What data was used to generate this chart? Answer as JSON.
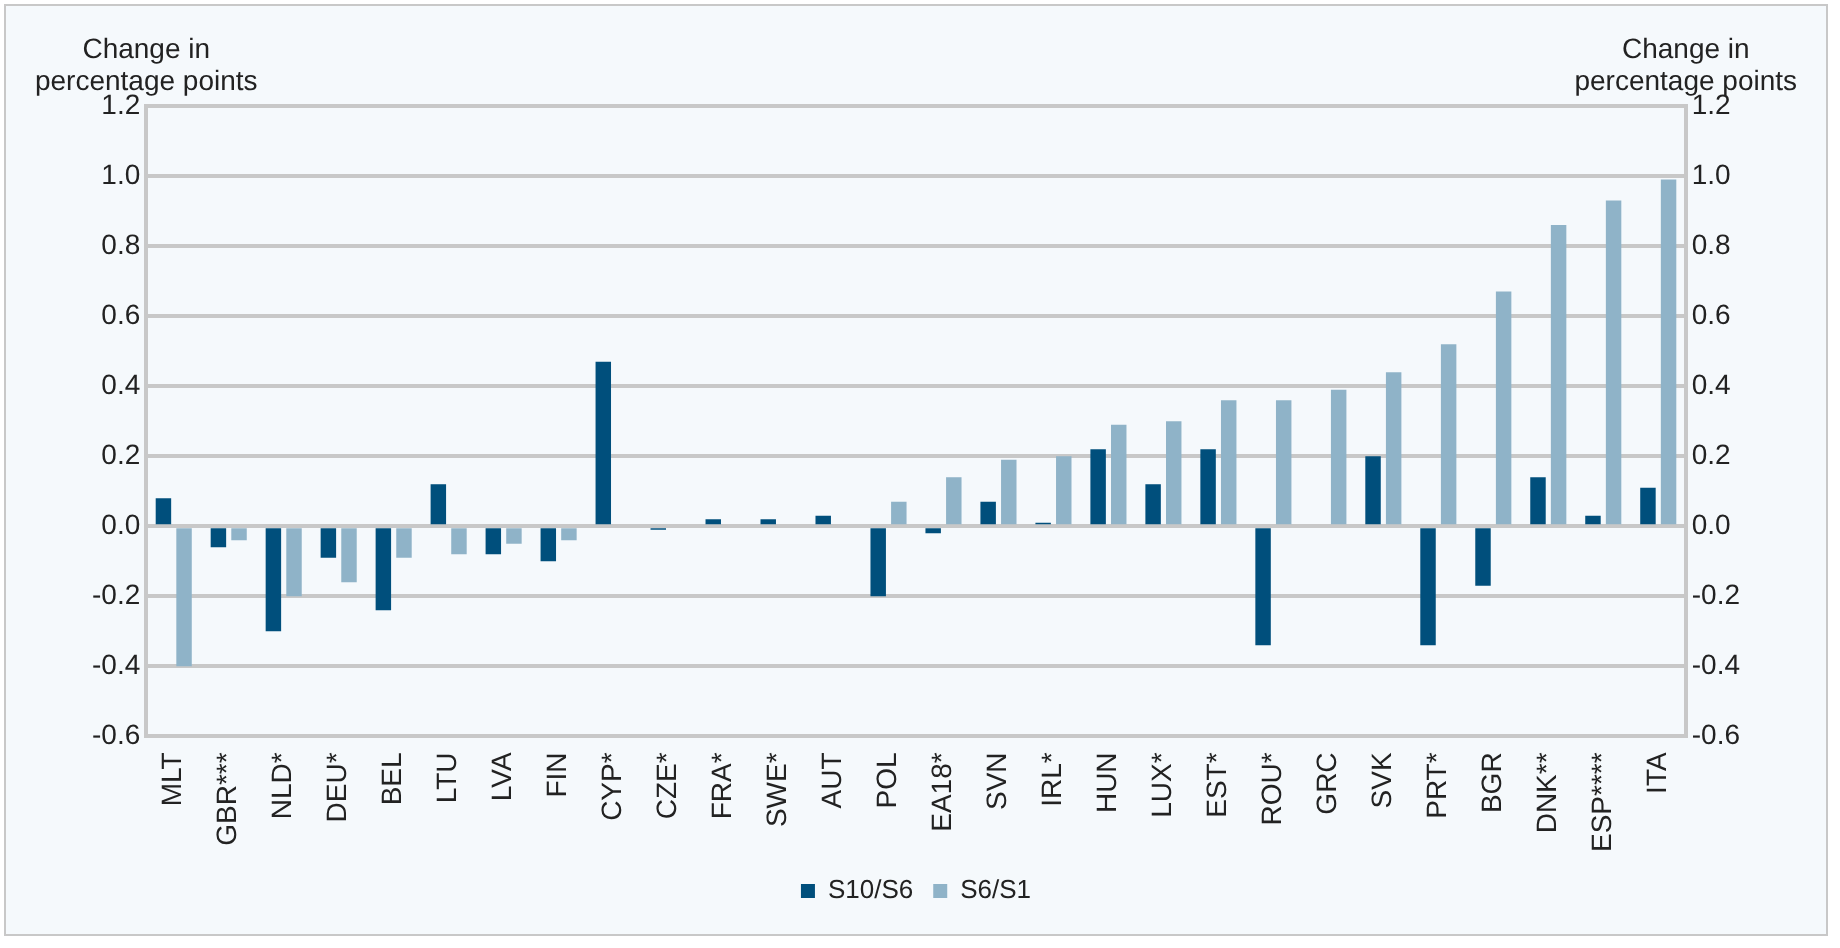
{
  "chart_data": {
    "type": "bar",
    "ylabel": "Change in percentage points",
    "y2label": "Change in percentage points",
    "categories": [
      "MLT",
      "GBR***",
      "NLD*",
      "DEU*",
      "BEL",
      "LTU",
      "LVA",
      "FIN",
      "CYP*",
      "CZE*",
      "FRA*",
      "SWE*",
      "AUT",
      "POL",
      "EA18*",
      "SVN",
      "IRL*",
      "HUN",
      "LUX*",
      "EST*",
      "ROU*",
      "GRC",
      "SVK",
      "PRT*",
      "BGR",
      "DNK**",
      "ESP****",
      "ITA"
    ],
    "series": [
      {
        "name": "S10/S6",
        "color": "#004f7c",
        "values": [
          0.08,
          -0.06,
          -0.3,
          -0.09,
          -0.24,
          0.12,
          -0.08,
          -0.1,
          0.47,
          -0.01,
          0.02,
          0.02,
          0.03,
          -0.2,
          -0.02,
          0.07,
          0.01,
          0.22,
          0.12,
          0.22,
          -0.34,
          0,
          0.2,
          -0.34,
          -0.17,
          0.14,
          0.03,
          0.11
        ]
      },
      {
        "name": "S6/S1",
        "color": "#8fb3c8",
        "values": [
          -0.4,
          -0.04,
          -0.2,
          -0.16,
          -0.09,
          -0.08,
          -0.05,
          -0.04,
          0,
          0,
          0,
          0,
          0,
          0.07,
          0.14,
          0.19,
          0.2,
          0.29,
          0.3,
          0.36,
          0.36,
          0.39,
          0.44,
          0.52,
          0.67,
          0.86,
          0.93,
          0.99
        ]
      }
    ],
    "ylim": [
      -0.6,
      1.2
    ],
    "yticks": [
      {
        "value": -0.6,
        "label": "-0.6"
      },
      {
        "value": -0.4,
        "label": "-0.4"
      },
      {
        "value": -0.2,
        "label": "-0.2"
      },
      {
        "value": 0,
        "label": "0.0"
      },
      {
        "value": 0.2,
        "label": "0.2"
      },
      {
        "value": 0.4,
        "label": "0.4"
      },
      {
        "value": 0.6,
        "label": "0.6"
      },
      {
        "value": 0.8,
        "label": "0.8"
      },
      {
        "value": 1,
        "label": "1.0"
      },
      {
        "value": 1.2,
        "label": "1.2"
      }
    ],
    "y2lim": [
      -0.6,
      1.2
    ],
    "y2ticks": [
      {
        "value": -0.6,
        "label": "-0.6"
      },
      {
        "value": -0.4,
        "label": "-0.4"
      },
      {
        "value": -0.2,
        "label": "-0.2"
      },
      {
        "value": 0,
        "label": "0.0"
      },
      {
        "value": 0.2,
        "label": "0.2"
      },
      {
        "value": 0.4,
        "label": "0.4"
      },
      {
        "value": 0.6,
        "label": "0.6"
      },
      {
        "value": 0.8,
        "label": "0.8"
      },
      {
        "value": 1,
        "label": "1.0"
      },
      {
        "value": 1.2,
        "label": "1.2"
      }
    ],
    "grid": "y",
    "legend": "bottom"
  }
}
